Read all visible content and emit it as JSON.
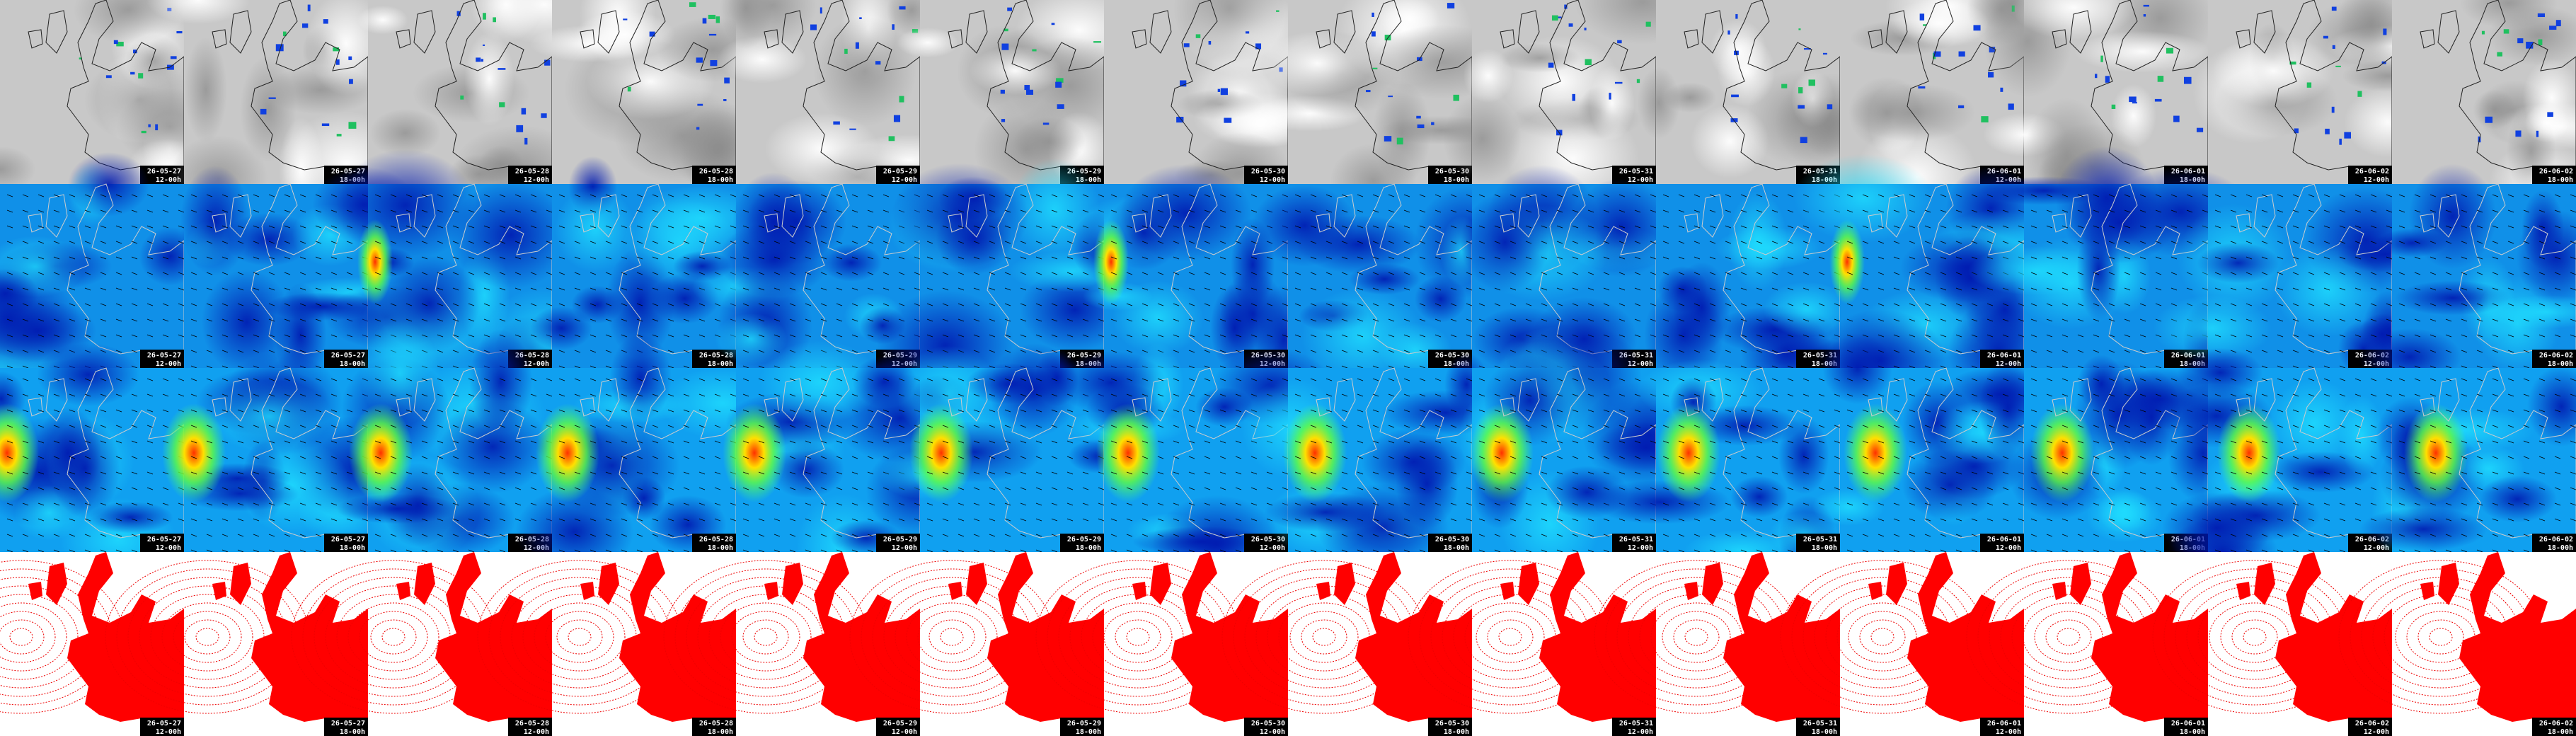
{
  "columns": [
    {
      "date": "26-05-27",
      "time": "12-00h"
    },
    {
      "date": "26-05-27",
      "time": "18-00h"
    },
    {
      "date": "26-05-28",
      "time": "12-00h"
    },
    {
      "date": "26-05-28",
      "time": "18-00h"
    },
    {
      "date": "26-05-29",
      "time": "12-00h"
    },
    {
      "date": "26-05-29",
      "time": "18-00h"
    },
    {
      "date": "26-05-30",
      "time": "12-00h"
    },
    {
      "date": "26-05-30",
      "time": "18-00h"
    },
    {
      "date": "26-05-31",
      "time": "12-00h"
    },
    {
      "date": "26-05-31",
      "time": "18-00h"
    },
    {
      "date": "26-06-01",
      "time": "12-00h"
    },
    {
      "date": "26-06-01",
      "time": "18-00h"
    },
    {
      "date": "26-06-02",
      "time": "12-00h"
    },
    {
      "date": "26-06-02",
      "time": "18-00h"
    }
  ]
}
